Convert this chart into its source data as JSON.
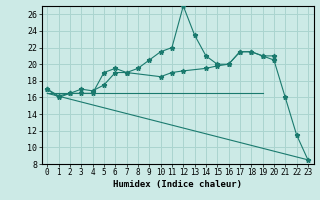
{
  "xlabel": "Humidex (Indice chaleur)",
  "bg_color": "#cceae6",
  "grid_color": "#aad4cf",
  "line_color": "#1a7a6e",
  "xlim": [
    -0.5,
    23.5
  ],
  "ylim": [
    8,
    27
  ],
  "xticks": [
    0,
    1,
    2,
    3,
    4,
    5,
    6,
    7,
    8,
    9,
    10,
    11,
    12,
    13,
    14,
    15,
    16,
    17,
    18,
    19,
    20,
    21,
    22,
    23
  ],
  "yticks": [
    8,
    10,
    12,
    14,
    16,
    18,
    20,
    22,
    24,
    26
  ],
  "line1_x": [
    0,
    1,
    2,
    3,
    4,
    5,
    6,
    7,
    8,
    9,
    10,
    11,
    12,
    13,
    14,
    15,
    16,
    17,
    18,
    19,
    20,
    21,
    22,
    23
  ],
  "line1_y": [
    17.0,
    16.0,
    16.5,
    16.5,
    16.5,
    19.0,
    19.5,
    19.0,
    19.5,
    20.5,
    21.5,
    22.0,
    27.0,
    23.5,
    21.0,
    20.0,
    20.0,
    21.5,
    21.5,
    21.0,
    20.5,
    16.0,
    11.5,
    8.5
  ],
  "line2_x": [
    0,
    1,
    2,
    3,
    4,
    5,
    6,
    7,
    10,
    11,
    12,
    14,
    15,
    16,
    17,
    18,
    19,
    20
  ],
  "line2_y": [
    17.0,
    16.2,
    16.5,
    17.0,
    16.8,
    17.5,
    19.0,
    19.0,
    18.5,
    19.0,
    19.2,
    19.5,
    19.8,
    20.0,
    21.5,
    21.5,
    21.0,
    21.0
  ],
  "line3_x": [
    0,
    19
  ],
  "line3_y": [
    16.5,
    16.5
  ],
  "line4_x": [
    0,
    23
  ],
  "line4_y": [
    16.5,
    8.5
  ]
}
